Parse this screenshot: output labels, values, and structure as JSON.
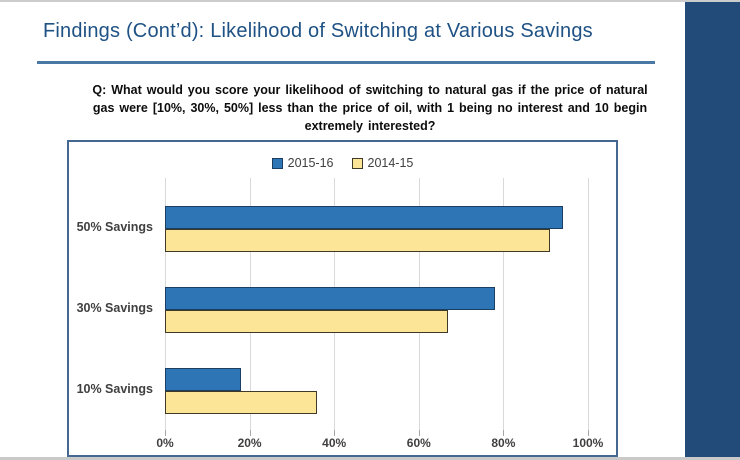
{
  "slide": {
    "title": "Findings (Cont’d): Likelihood of Switching at Various Savings",
    "question": "Q: What would you score your likelihood of switching to natural gas if the price of natural gas were [10%, 30%, 50%] less than the price of oil, with 1 being no interest and 10 begin extremely interested?"
  },
  "colors": {
    "title_text": "#1e5184",
    "title_rule": "#4a79a5",
    "side_band": "#234b7a",
    "chart_border": "#44688f",
    "gridline": "#d9d9d9",
    "axis_text": "#404040",
    "series_blue_fill": "#2e75b6",
    "series_blue_border": "#1c3e63",
    "series_yellow_fill": "#fce596",
    "series_yellow_border": "#3f3a28"
  },
  "chart_data": {
    "type": "bar",
    "orientation": "horizontal",
    "title": "",
    "categories": [
      "50% Savings",
      "30% Savings",
      "10% Savings"
    ],
    "series": [
      {
        "name": "2015-16",
        "fill": "#2e75b6",
        "border": "#1c3e63",
        "values": [
          94,
          78,
          18
        ]
      },
      {
        "name": "2014-15",
        "fill": "#fce596",
        "border": "#3f3a28",
        "values": [
          91,
          67,
          36
        ]
      }
    ],
    "x_ticks": [
      "0%",
      "20%",
      "40%",
      "60%",
      "80%",
      "100%"
    ],
    "x_tick_values": [
      0,
      20,
      40,
      60,
      80,
      100
    ],
    "xlim": [
      0,
      100
    ],
    "grid": true,
    "legend_position": "top-center"
  }
}
